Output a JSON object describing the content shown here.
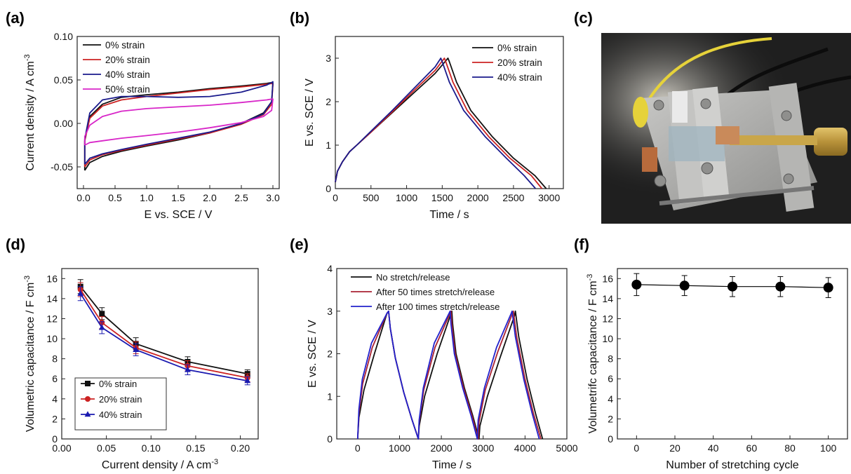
{
  "panels": {
    "a": "(a)",
    "b": "(b)",
    "c": "(c)",
    "d": "(d)",
    "e": "(e)",
    "f": "(f)"
  },
  "chart_data": [
    {
      "id": "a",
      "type": "line",
      "xlabel": "E vs. SCE / V",
      "ylabel": "Current density / A cm",
      "ylabel_sup": "-3",
      "xlim": [
        -0.1,
        3.1
      ],
      "ylim": [
        -0.075,
        0.1
      ],
      "xticks": [
        0.0,
        0.5,
        1.0,
        1.5,
        2.0,
        2.5,
        3.0
      ],
      "xtick_labels": [
        "0.0",
        "0.5",
        "1.0",
        "1.5",
        "2.0",
        "2.5",
        "3.0"
      ],
      "yticks": [
        -0.05,
        0.0,
        0.05,
        0.1
      ],
      "ytick_labels": [
        "-0.05",
        "0.00",
        "0.05",
        "0.10"
      ],
      "legend_position": "top-left",
      "series": [
        {
          "name": "0% strain",
          "color": "#111111",
          "x": [
            0.02,
            0.1,
            0.3,
            0.6,
            1.0,
            1.5,
            2.0,
            2.5,
            2.85,
            2.98,
            3.0,
            2.98,
            2.9,
            2.5,
            2.0,
            1.5,
            1.0,
            0.6,
            0.3,
            0.1,
            0.02,
            0.02
          ],
          "y": [
            -0.054,
            -0.045,
            -0.038,
            -0.032,
            -0.026,
            -0.019,
            -0.011,
            0.0,
            0.012,
            0.025,
            0.046,
            0.047,
            0.046,
            0.043,
            0.04,
            0.036,
            0.033,
            0.03,
            0.022,
            0.008,
            -0.02,
            -0.054
          ]
        },
        {
          "name": "20% strain",
          "color": "#cc2222",
          "x": [
            0.02,
            0.1,
            0.3,
            0.6,
            1.0,
            1.5,
            2.0,
            2.5,
            2.85,
            2.98,
            3.0,
            2.98,
            2.9,
            2.5,
            2.0,
            1.5,
            1.0,
            0.6,
            0.3,
            0.1,
            0.02,
            0.02
          ],
          "y": [
            -0.05,
            -0.042,
            -0.036,
            -0.031,
            -0.025,
            -0.018,
            -0.011,
            -0.001,
            0.01,
            0.022,
            0.045,
            0.046,
            0.045,
            0.042,
            0.039,
            0.035,
            0.031,
            0.027,
            0.02,
            0.006,
            -0.02,
            -0.05
          ]
        },
        {
          "name": "40% strain",
          "color": "#1a1a8c",
          "x": [
            0.02,
            0.1,
            0.3,
            0.6,
            1.0,
            1.5,
            2.0,
            2.5,
            2.85,
            2.98,
            3.0,
            2.98,
            2.9,
            2.5,
            2.0,
            1.5,
            1.0,
            0.6,
            0.3,
            0.1,
            0.02,
            0.02
          ],
          "y": [
            -0.047,
            -0.04,
            -0.035,
            -0.03,
            -0.024,
            -0.017,
            -0.01,
            0.0,
            0.011,
            0.025,
            0.048,
            0.047,
            0.044,
            0.036,
            0.031,
            0.03,
            0.031,
            0.031,
            0.027,
            0.012,
            -0.018,
            -0.047
          ]
        },
        {
          "name": "50% strain",
          "color": "#d826c8",
          "x": [
            0.02,
            0.1,
            0.3,
            0.6,
            1.0,
            1.5,
            2.0,
            2.5,
            2.85,
            2.98,
            3.0,
            2.98,
            2.9,
            2.5,
            2.0,
            1.5,
            1.0,
            0.6,
            0.3,
            0.1,
            0.02,
            0.02
          ],
          "y": [
            -0.025,
            -0.022,
            -0.02,
            -0.017,
            -0.014,
            -0.01,
            -0.005,
            0.001,
            0.008,
            0.015,
            0.028,
            0.028,
            0.027,
            0.024,
            0.021,
            0.019,
            0.017,
            0.014,
            0.008,
            -0.002,
            -0.015,
            -0.025
          ]
        }
      ]
    },
    {
      "id": "b",
      "type": "line",
      "xlabel": "Time / s",
      "ylabel": "E vs. SCE / V",
      "xlim": [
        0,
        3200
      ],
      "ylim": [
        0,
        3.5
      ],
      "xticks": [
        0,
        500,
        1000,
        1500,
        2000,
        2500,
        3000
      ],
      "xtick_labels": [
        "0",
        "500",
        "1000",
        "1500",
        "2000",
        "2500",
        "3000"
      ],
      "yticks": [
        0,
        1,
        2,
        3
      ],
      "ytick_labels": [
        "0",
        "1",
        "2",
        "3"
      ],
      "legend_position": "top-right",
      "series": [
        {
          "name": "0% strain",
          "color": "#111111",
          "x": [
            0,
            30,
            100,
            200,
            300,
            500,
            800,
            1100,
            1400,
            1580,
            1600,
            1700,
            1900,
            2200,
            2500,
            2800,
            2960
          ],
          "y": [
            0.15,
            0.4,
            0.62,
            0.85,
            1.0,
            1.3,
            1.75,
            2.2,
            2.65,
            3.0,
            2.92,
            2.45,
            1.8,
            1.2,
            0.7,
            0.3,
            0.0
          ]
        },
        {
          "name": "20% strain",
          "color": "#cc2222",
          "x": [
            0,
            30,
            100,
            200,
            300,
            500,
            800,
            1100,
            1400,
            1530,
            1550,
            1650,
            1850,
            2150,
            2450,
            2750,
            2900
          ],
          "y": [
            0.15,
            0.4,
            0.62,
            0.85,
            1.0,
            1.3,
            1.77,
            2.25,
            2.72,
            3.0,
            2.92,
            2.45,
            1.8,
            1.2,
            0.7,
            0.3,
            0.0
          ]
        },
        {
          "name": "40% strain",
          "color": "#1a1a8c",
          "x": [
            0,
            30,
            100,
            200,
            300,
            500,
            800,
            1100,
            1400,
            1480,
            1500,
            1600,
            1800,
            2100,
            2400,
            2650,
            2810
          ],
          "y": [
            0.15,
            0.4,
            0.62,
            0.85,
            1.0,
            1.32,
            1.8,
            2.3,
            2.8,
            3.0,
            2.92,
            2.45,
            1.8,
            1.2,
            0.7,
            0.3,
            0.0
          ]
        }
      ]
    },
    {
      "id": "d",
      "type": "line",
      "xlabel": "Current density / A cm",
      "xlabel_sup": "-3",
      "ylabel": "Volumetric capacitance / F cm",
      "ylabel_sup": "-3",
      "xlim": [
        0.0,
        0.22
      ],
      "ylim": [
        0,
        17
      ],
      "xticks": [
        0.0,
        0.05,
        0.1,
        0.15,
        0.2
      ],
      "xtick_labels": [
        "0.00",
        "0.05",
        "0.10",
        "0.15",
        "0.20"
      ],
      "yticks": [
        0,
        2,
        4,
        6,
        8,
        10,
        12,
        14,
        16
      ],
      "ytick_labels": [
        "0",
        "2",
        "4",
        "6",
        "8",
        "10",
        "12",
        "14",
        "16"
      ],
      "legend_position": "bottom-left",
      "series": [
        {
          "name": "0% strain",
          "color": "#111111",
          "marker": "square",
          "x": [
            0.021,
            0.045,
            0.083,
            0.141,
            0.208
          ],
          "y": [
            15.2,
            12.5,
            9.5,
            7.7,
            6.5
          ],
          "err": [
            0.7,
            0.6,
            0.6,
            0.5,
            0.4
          ]
        },
        {
          "name": "20% strain",
          "color": "#cc2222",
          "marker": "circle",
          "x": [
            0.021,
            0.045,
            0.083,
            0.141,
            0.208
          ],
          "y": [
            14.9,
            11.6,
            9.1,
            7.3,
            6.1
          ],
          "err": [
            0.7,
            0.6,
            0.6,
            0.5,
            0.4
          ]
        },
        {
          "name": "40% strain",
          "color": "#1a1ab0",
          "marker": "triangle",
          "x": [
            0.021,
            0.045,
            0.083,
            0.141,
            0.208
          ],
          "y": [
            14.5,
            11.1,
            8.9,
            6.9,
            5.8
          ],
          "err": [
            0.7,
            0.6,
            0.6,
            0.5,
            0.4
          ]
        }
      ]
    },
    {
      "id": "e",
      "type": "line",
      "xlabel": "Time / s",
      "ylabel": "E vs. SCE / V",
      "xlim": [
        -500,
        5000
      ],
      "ylim": [
        0,
        4
      ],
      "xticks": [
        0,
        1000,
        2000,
        3000,
        4000,
        5000
      ],
      "xtick_labels": [
        "0",
        "1000",
        "2000",
        "3000",
        "4000",
        "5000"
      ],
      "yticks": [
        0,
        1,
        2,
        3,
        4
      ],
      "ytick_labels": [
        "0",
        "1",
        "2",
        "3",
        "4"
      ],
      "legend_position": "top-left",
      "series": [
        {
          "name": "No stretch/release",
          "color": "#111111",
          "x": [
            0,
            30,
            150,
            400,
            700,
            740,
            780,
            900,
            1100,
            1300,
            1450,
            1470,
            1600,
            1900,
            2250,
            2270,
            2350,
            2550,
            2750,
            2900,
            2920,
            3100,
            3400,
            3750,
            3770,
            3850,
            4050,
            4250,
            4420
          ],
          "y": [
            0,
            0.5,
            1.15,
            2.0,
            2.95,
            3.0,
            2.6,
            1.9,
            1.1,
            0.45,
            0,
            0.3,
            1.0,
            2.0,
            3.0,
            2.7,
            2.0,
            1.2,
            0.55,
            0,
            0.3,
            1.0,
            1.9,
            2.9,
            3.0,
            2.4,
            1.4,
            0.6,
            0
          ]
        },
        {
          "name": "After 50 times stretch/release",
          "color": "#aa2233",
          "x": [
            0,
            30,
            120,
            350,
            700,
            740,
            780,
            900,
            1100,
            1300,
            1450,
            1470,
            1580,
            1850,
            2230,
            2250,
            2330,
            2530,
            2730,
            2880,
            2900,
            3050,
            3350,
            3700,
            3720,
            3800,
            4000,
            4200,
            4380
          ],
          "y": [
            0,
            0.6,
            1.3,
            2.15,
            2.95,
            3.0,
            2.6,
            1.9,
            1.1,
            0.45,
            0,
            0.4,
            1.15,
            2.15,
            3.0,
            2.7,
            2.0,
            1.2,
            0.55,
            0,
            0.4,
            1.15,
            2.05,
            2.95,
            3.0,
            2.4,
            1.4,
            0.6,
            0
          ]
        },
        {
          "name": "After 100 times stretch/release",
          "color": "#2222cc",
          "x": [
            0,
            30,
            110,
            330,
            700,
            740,
            780,
            900,
            1100,
            1300,
            1450,
            1470,
            1570,
            1830,
            2210,
            2230,
            2310,
            2510,
            2710,
            2860,
            2880,
            3030,
            3320,
            3670,
            3690,
            3770,
            3970,
            4170,
            4340
          ],
          "y": [
            0,
            0.7,
            1.4,
            2.25,
            2.95,
            3.0,
            2.6,
            1.9,
            1.1,
            0.45,
            0,
            0.45,
            1.2,
            2.25,
            3.0,
            2.7,
            2.0,
            1.2,
            0.55,
            0,
            0.45,
            1.2,
            2.15,
            2.95,
            3.0,
            2.4,
            1.4,
            0.6,
            0
          ]
        }
      ]
    },
    {
      "id": "f",
      "type": "scatter",
      "xlabel": "Number of stretching cycle",
      "ylabel": "Volumetrifc capacitance / F cm",
      "ylabel_sup": "-3",
      "xlim": [
        -10,
        110
      ],
      "ylim": [
        0,
        17
      ],
      "xticks": [
        0,
        20,
        40,
        60,
        80,
        100
      ],
      "xtick_labels": [
        "0",
        "20",
        "40",
        "60",
        "80",
        "100"
      ],
      "yticks": [
        0,
        2,
        4,
        6,
        8,
        10,
        12,
        14,
        16
      ],
      "ytick_labels": [
        "0",
        "2",
        "4",
        "6",
        "8",
        "10",
        "12",
        "14",
        "16"
      ],
      "series": [
        {
          "color": "#000000",
          "marker": "circle",
          "x": [
            0,
            25,
            50,
            75,
            100
          ],
          "y": [
            15.4,
            15.3,
            15.2,
            15.2,
            15.1
          ],
          "err": [
            1.1,
            1.0,
            1.0,
            1.0,
            1.0
          ]
        }
      ]
    }
  ]
}
